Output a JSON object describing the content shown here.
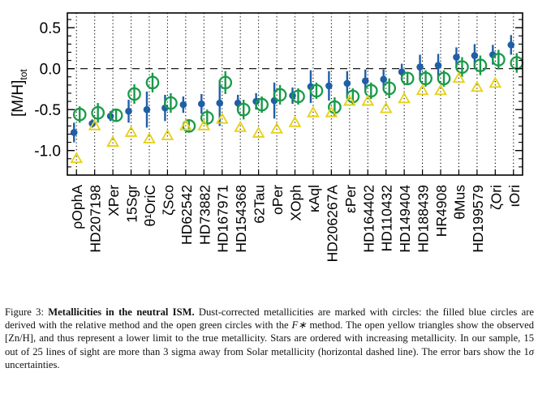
{
  "chart_data": {
    "type": "scatter",
    "ylabel": "[M/H]",
    "ylabel_subscript": "tot",
    "ylim": [
      -1.3,
      0.68
    ],
    "yticks": [
      0.5,
      0.0,
      -0.5,
      -1.0
    ],
    "ytick_labels": [
      "0.5",
      "0.0",
      "-0.5",
      "-1.0"
    ],
    "reference_line": {
      "y": 0.0,
      "style": "dashed"
    },
    "vertical_gridlines": "dotted",
    "categories": [
      "ρOphA",
      "HD207198",
      "XPer",
      "15Sgr",
      "θ¹OriC",
      "ζSco",
      "HD62542",
      "HD73882",
      "HD167971",
      "HD154368",
      "62Tau",
      "oPer",
      "XOph",
      "κAql",
      "HD206267A",
      "εPer",
      "HD164402",
      "HD110432",
      "HD149404",
      "HD188439",
      "HR4908",
      "θMus",
      "HD199579",
      "ζOri",
      "ιOri"
    ],
    "series": [
      {
        "marker": "filled-circle",
        "color": "#1f5fa6",
        "values": [
          -0.78,
          -0.67,
          -0.58,
          -0.52,
          -0.5,
          -0.48,
          -0.44,
          -0.43,
          -0.42,
          -0.42,
          -0.4,
          -0.39,
          -0.33,
          -0.22,
          -0.21,
          -0.18,
          -0.15,
          -0.13,
          -0.04,
          0.02,
          0.04,
          0.14,
          0.16,
          0.17,
          0.29
        ],
        "errors": [
          0.12,
          0.05,
          0.06,
          0.14,
          0.22,
          0.16,
          0.1,
          0.12,
          0.28,
          0.1,
          0.1,
          0.22,
          0.1,
          0.2,
          0.18,
          0.15,
          0.14,
          0.12,
          0.1,
          0.15,
          0.14,
          0.12,
          0.14,
          0.12,
          0.12
        ]
      },
      {
        "marker": "open-circle",
        "color": "#1a9a4a",
        "values": [
          -0.56,
          -0.54,
          -0.57,
          -0.31,
          -0.17,
          -0.42,
          -0.7,
          -0.6,
          -0.17,
          -0.5,
          -0.44,
          -0.32,
          -0.34,
          -0.27,
          -0.47,
          -0.34,
          -0.27,
          -0.24,
          -0.12,
          -0.12,
          -0.12,
          0.02,
          0.04,
          0.11,
          0.07
        ],
        "errors": [
          0.1,
          0.12,
          0.08,
          0.12,
          0.12,
          0.12,
          0.08,
          0.1,
          0.14,
          0.12,
          0.1,
          0.12,
          0.1,
          0.1,
          0.12,
          0.1,
          0.1,
          0.12,
          0.08,
          0.1,
          0.1,
          0.12,
          0.12,
          0.12,
          0.12
        ]
      },
      {
        "marker": "open-triangle",
        "color": "#e6d21a",
        "values": [
          -1.1,
          -0.7,
          -0.9,
          -0.78,
          -0.86,
          -0.82,
          -0.7,
          -0.7,
          -0.62,
          -0.72,
          -0.79,
          -0.74,
          -0.66,
          -0.54,
          -0.54,
          -0.4,
          -0.4,
          -0.49,
          -0.37,
          -0.27,
          -0.27,
          -0.12,
          -0.23,
          -0.18,
          null
        ],
        "errors": []
      }
    ]
  },
  "caption": {
    "label": "Figure 3:",
    "title": "Metallicities in the neutral ISM.",
    "text_before_F": " Dust-corrected metallicities are marked with circles: the filled blue circles are derived with the relative method and the open green circles with the ",
    "F_symbol": "F∗",
    "text_after_F": " method. The open yellow triangles show the observed [Zn/H], and thus represent a lower limit to the true metallicity. Stars are ordered with increasing metallicity. In our sample, 15 out of 25 lines of sight are more than 3 sigma away from Solar metallicity (horizontal dashed line). The error bars show the 1",
    "sigma_symbol": "σ",
    "text_end": " uncertainties."
  }
}
